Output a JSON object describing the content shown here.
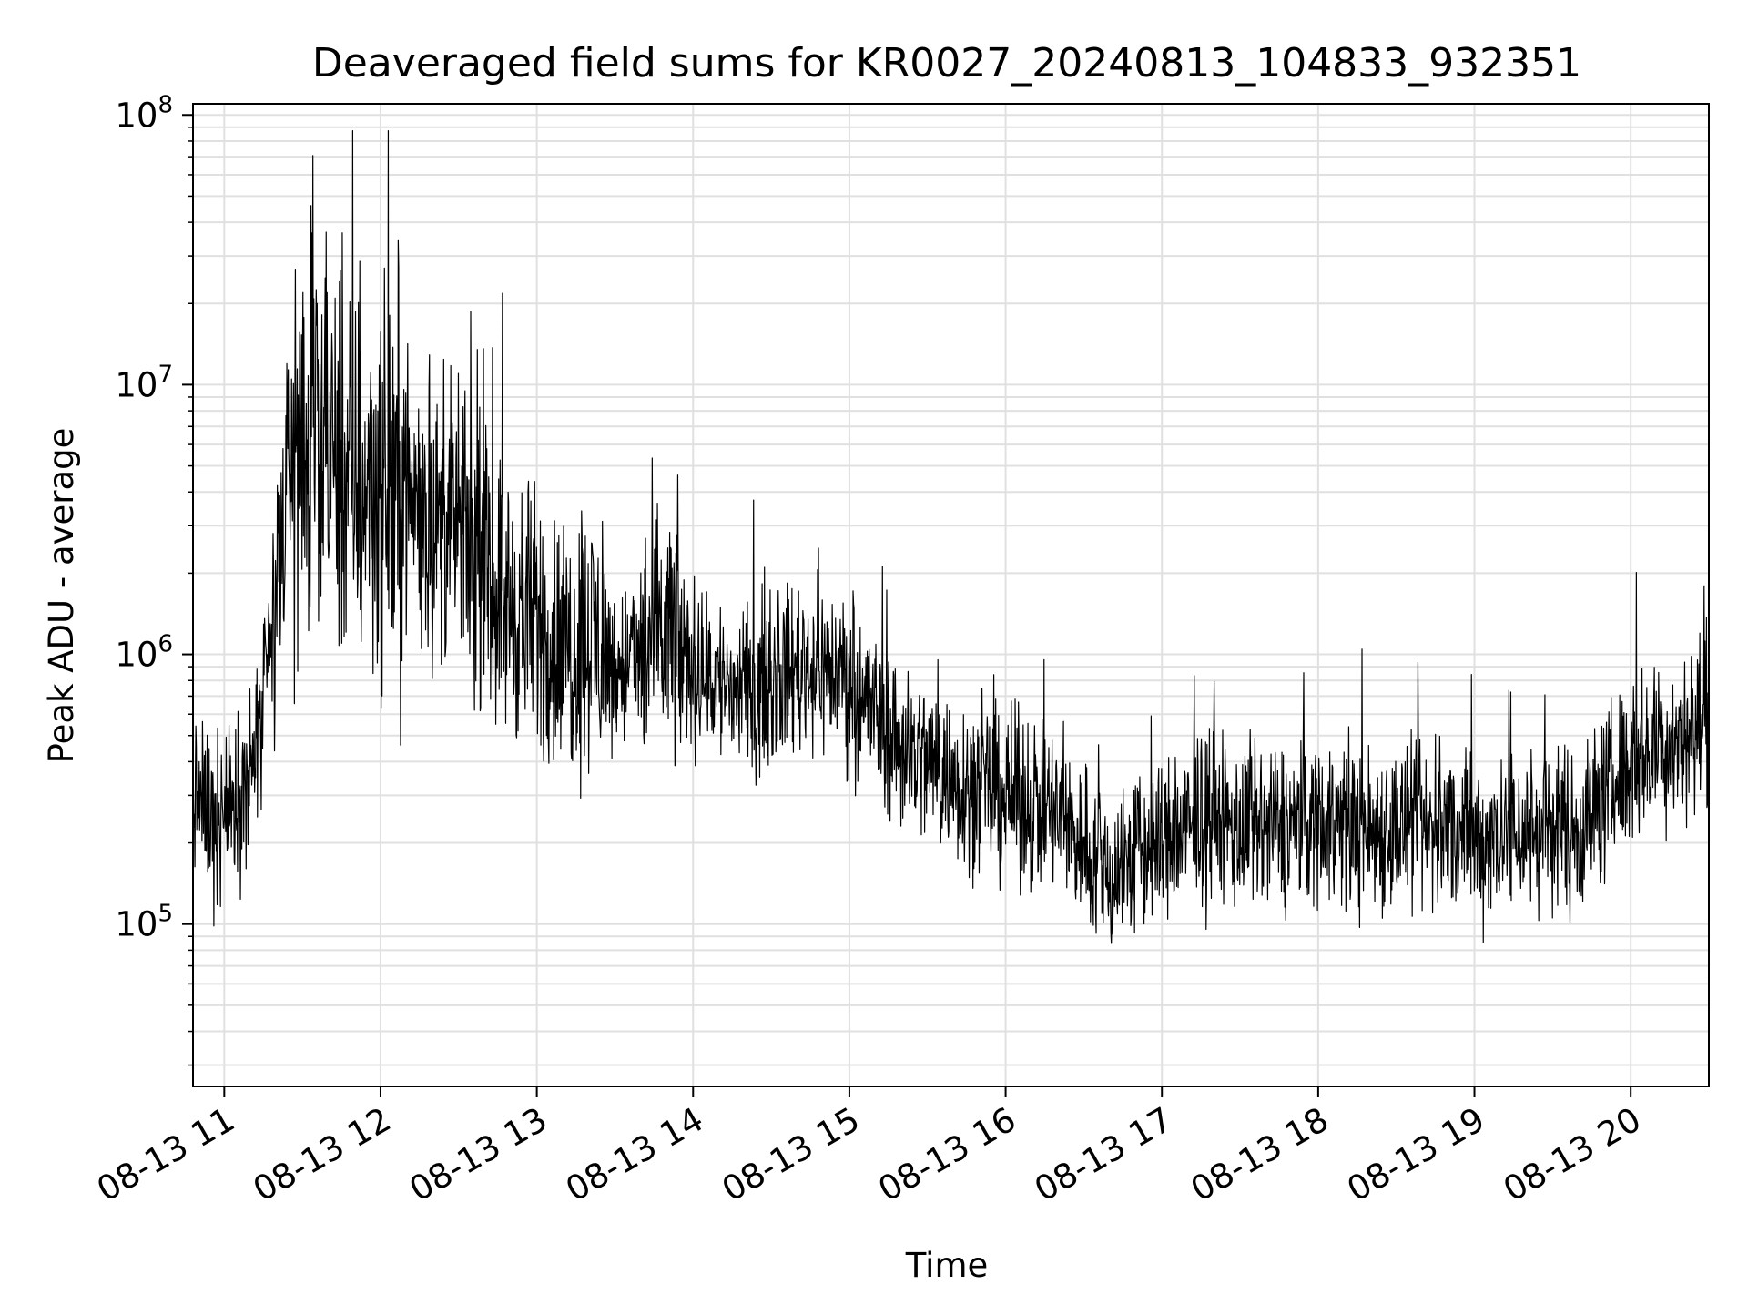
{
  "chart_data": {
    "type": "line",
    "title": "Deaveraged field sums for KR0027_20240813_104833_932351",
    "xlabel": "Time",
    "ylabel": "Peak ADU - average",
    "xscale": "time",
    "yscale": "log",
    "x_range": [
      "2024-08-13 10:48",
      "2024-08-13 20:30"
    ],
    "ylim": [
      25000,
      110000000
    ],
    "grid": true,
    "legend": "none",
    "colors": {
      "line": "#000000",
      "grid": "#e0e0e0",
      "background": "#ffffff"
    },
    "x_ticks": [
      "2024-08-13 11:00",
      "2024-08-13 12:00",
      "2024-08-13 13:00",
      "2024-08-13 14:00",
      "2024-08-13 15:00",
      "2024-08-13 16:00",
      "2024-08-13 17:00",
      "2024-08-13 18:00",
      "2024-08-13 19:00",
      "2024-08-13 20:00"
    ],
    "x_tick_labels": [
      "08-13 11",
      "08-13 12",
      "08-13 13",
      "08-13 14",
      "08-13 15",
      "08-13 16",
      "08-13 17",
      "08-13 18",
      "08-13 19",
      "08-13 20"
    ],
    "y_ticks": [
      100000,
      1000000,
      10000000,
      100000000
    ],
    "y_tick_labels": [
      {
        "base": "10",
        "exp": "5"
      },
      {
        "base": "10",
        "exp": "6"
      },
      {
        "base": "10",
        "exp": "7"
      },
      {
        "base": "10",
        "exp": "8"
      }
    ],
    "series": [
      {
        "x": [
          "2024-08-13 10:48",
          "2024-08-13 10:55",
          "2024-08-13 11:00",
          "2024-08-13 11:05",
          "2024-08-13 11:10",
          "2024-08-13 11:15",
          "2024-08-13 11:20",
          "2024-08-13 11:25",
          "2024-08-13 11:30",
          "2024-08-13 11:35",
          "2024-08-13 11:40",
          "2024-08-13 11:45",
          "2024-08-13 11:50",
          "2024-08-13 11:55",
          "2024-08-13 12:00",
          "2024-08-13 12:10",
          "2024-08-13 12:20",
          "2024-08-13 12:30",
          "2024-08-13 12:40",
          "2024-08-13 12:50",
          "2024-08-13 13:00",
          "2024-08-13 13:10",
          "2024-08-13 13:20",
          "2024-08-13 13:30",
          "2024-08-13 13:40",
          "2024-08-13 13:50",
          "2024-08-13 14:00",
          "2024-08-13 14:10",
          "2024-08-13 14:20",
          "2024-08-13 14:30",
          "2024-08-13 14:40",
          "2024-08-13 14:50",
          "2024-08-13 15:00",
          "2024-08-13 15:10",
          "2024-08-13 15:20",
          "2024-08-13 15:30",
          "2024-08-13 15:40",
          "2024-08-13 15:50",
          "2024-08-13 16:00",
          "2024-08-13 16:10",
          "2024-08-13 16:20",
          "2024-08-13 16:30",
          "2024-08-13 16:40",
          "2024-08-13 16:50",
          "2024-08-13 17:00",
          "2024-08-13 17:10",
          "2024-08-13 17:20",
          "2024-08-13 17:30",
          "2024-08-13 17:40",
          "2024-08-13 17:50",
          "2024-08-13 18:00",
          "2024-08-13 18:10",
          "2024-08-13 18:20",
          "2024-08-13 18:30",
          "2024-08-13 18:40",
          "2024-08-13 18:50",
          "2024-08-13 19:00",
          "2024-08-13 19:10",
          "2024-08-13 19:20",
          "2024-08-13 19:30",
          "2024-08-13 19:40",
          "2024-08-13 19:50",
          "2024-08-13 20:00",
          "2024-08-13 20:10",
          "2024-08-13 20:20",
          "2024-08-13 20:30"
        ],
        "y": [
          300000,
          250000,
          250000,
          300000,
          350000,
          600000,
          1500000,
          5000000,
          6000000,
          5000000,
          6000000,
          5000000,
          4000000,
          4500000,
          4000000,
          4000000,
          3000000,
          3000000,
          2000000,
          1500000,
          1300000,
          1000000,
          1200000,
          900000,
          1000000,
          1200000,
          900000,
          800000,
          700000,
          800000,
          900000,
          900000,
          800000,
          600000,
          450000,
          400000,
          350000,
          320000,
          300000,
          280000,
          250000,
          200000,
          150000,
          180000,
          200000,
          220000,
          250000,
          220000,
          220000,
          230000,
          250000,
          230000,
          220000,
          230000,
          220000,
          230000,
          200000,
          220000,
          220000,
          230000,
          220000,
          300000,
          400000,
          450000,
          500000,
          600000
        ]
      }
    ]
  }
}
